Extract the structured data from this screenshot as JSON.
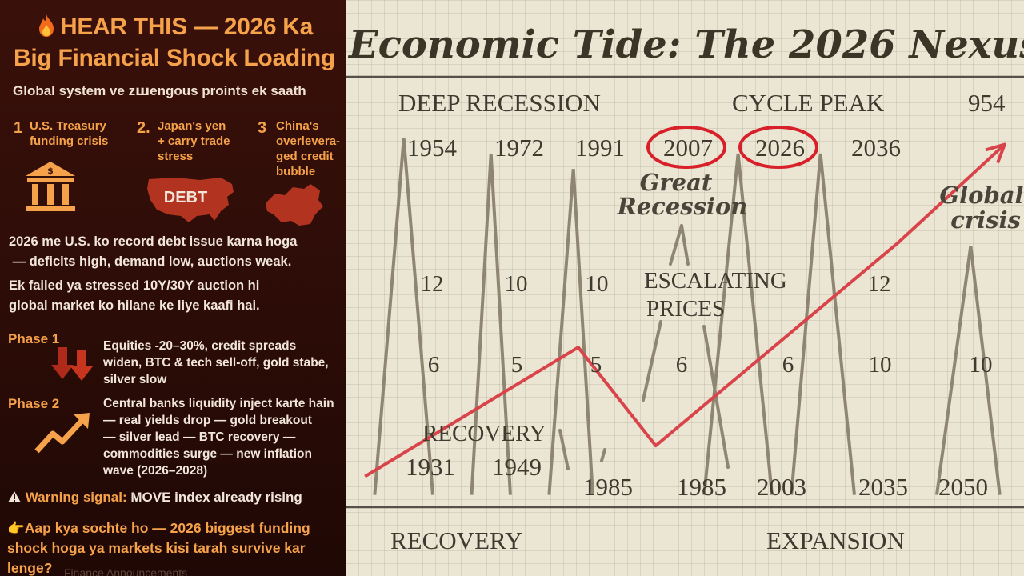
{
  "infographic": {
    "headline_line1": "HEAR THIS — 2026 Ka",
    "headline_line2": "Big Financial Shock Loading",
    "fire_icon": "fire-icon",
    "subtitle": "Global system ve zꟺengous proints ek saath",
    "points": [
      {
        "num": "1",
        "text": "U.S. Treasury\nfunding crisis",
        "icon": "bank-icon"
      },
      {
        "num": "2.",
        "text": "Japan's yen\n+ carry trade\nstress",
        "icon": "us-map-icon",
        "badge": "DEBT"
      },
      {
        "num": "3",
        "text": "China's\noverlevera-\nged credit\nbubble",
        "icon": "china-map-icon"
      }
    ],
    "paragraph1": "2026 me U.S. ko record debt issue karna hoga\n — deficits high, demand low, auctions weak.",
    "paragraph2": "Ek failed ya stressed 10Y/30Y auction hi\nglobal market ko hilane ke liye kaafi hai.",
    "phase1": {
      "label": "Phase 1",
      "text": "Equities -20–30%, credit spreads\nwiden, BTC & tech sell-off, gold stabe,\nsilver slow"
    },
    "phase2": {
      "label": "Phase 2",
      "text": "Central banks liquidity inject karte hain\n— real yields drop — gold breakout\n— silver lead — BTC recovery —\ncommodities surge — new inflation\nwave (2026–2028)"
    },
    "warning": {
      "label": "Warning signal:",
      "value": "MOVE index already rising"
    },
    "cta": "Aap kya sochte ho — 2026 biggest funding\nshock hoga ya markets kisi tarah survive kar\nlenge?",
    "ghost_text": "Finance Announcements"
  },
  "chart_data": {
    "type": "line",
    "title": "Economic Tide: The 2026 Nexus",
    "phase_labels": [
      "DEEP RECESSION",
      "CYCLE PEAK",
      "954",
      "RECOVERY",
      "EXPANSION",
      "RECOVERY"
    ],
    "top_years": [
      "1954",
      "1972",
      "1991",
      "2007",
      "2026",
      "2036"
    ],
    "circled_years": [
      "2007",
      "2026"
    ],
    "bottom_years": [
      "1931",
      "1949",
      "1985",
      "1985",
      "2003",
      "2035",
      "2050"
    ],
    "wave_top_numbers": [
      "12",
      "10",
      "10",
      "12"
    ],
    "wave_mid_numbers": [
      "6",
      "5",
      "5",
      "6",
      "6",
      "10",
      "10"
    ],
    "annotations": [
      "Great\nRecession",
      "ESCALATING\nPRICES",
      "Global\ncrisis"
    ],
    "colors": {
      "trend": "#d9434a",
      "wave": "#8e8672",
      "circle": "#d8202a",
      "grid": "#cfc7b2"
    },
    "trend_series": {
      "name": "Economic tide",
      "x": [
        1924,
        1968,
        1984,
        2034,
        2056
      ],
      "y": [
        1.0,
        5.2,
        2.0,
        8.6,
        11.8
      ]
    },
    "waves": [
      {
        "start": 1926,
        "peak": 1932,
        "end": 1938,
        "height": 12
      },
      {
        "start": 1946,
        "peak": 1950,
        "end": 1954,
        "height": 11.5
      },
      {
        "start": 1962,
        "peak": 1967,
        "end": 1971,
        "height": 11.0
      },
      {
        "start": 1994,
        "peak": 2001,
        "end": 2008,
        "height": 11.5
      },
      {
        "start": 2012,
        "peak": 2018,
        "end": 2025,
        "height": 11.5
      },
      {
        "start": 2042,
        "peak": 2049,
        "end": 2055,
        "height": 8.5
      }
    ],
    "xlim": [
      1920,
      2060
    ],
    "ylim": [
      0,
      14
    ]
  }
}
